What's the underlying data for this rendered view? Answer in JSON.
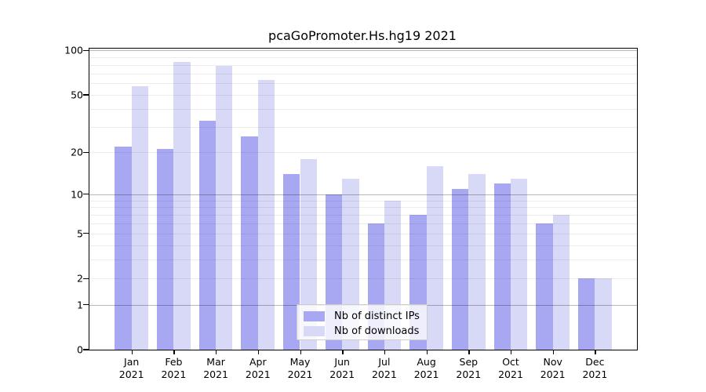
{
  "title": "pcaGoPromoter.Hs.hg19 2021",
  "chart_data": {
    "type": "bar",
    "title": "pcaGoPromoter.Hs.hg19 2021",
    "xlabel": "",
    "ylabel": "",
    "months": [
      "Jan",
      "Feb",
      "Mar",
      "Apr",
      "May",
      "Jun",
      "Jul",
      "Aug",
      "Sep",
      "Oct",
      "Nov",
      "Dec"
    ],
    "year": "2021",
    "categories": [
      "Jan 2021",
      "Feb 2021",
      "Mar 2021",
      "Apr 2021",
      "May 2021",
      "Jun 2021",
      "Jul 2021",
      "Aug 2021",
      "Sep 2021",
      "Oct 2021",
      "Nov 2021",
      "Dec 2021"
    ],
    "series": [
      {
        "name": "Nb of distinct IPs",
        "color": "#a8a8f2",
        "values": [
          22,
          21,
          33,
          26,
          14,
          10,
          6,
          7,
          11,
          12,
          6,
          2
        ]
      },
      {
        "name": "Nb of downloads",
        "color": "#d8d8f7",
        "values": [
          57,
          84,
          79,
          63,
          18,
          13,
          9,
          16,
          14,
          13,
          7,
          2
        ]
      }
    ],
    "yscale": "log10(1+y)",
    "ylim": [
      0,
      100
    ],
    "yticks": [
      0,
      1,
      2,
      5,
      10,
      20,
      50,
      100
    ],
    "grid_major": [
      1,
      10,
      100
    ],
    "grid_minor": [
      2,
      3,
      4,
      5,
      6,
      7,
      8,
      9,
      20,
      30,
      40,
      50,
      60,
      70,
      80,
      90
    ],
    "grid": "on",
    "legend_position": "lower center",
    "colors": {
      "distinct_ips": "#a8a8f2",
      "downloads": "#d8d8f7",
      "grid_major": "#b9b9b9",
      "grid_minor": "#ededed",
      "axis": "#000000"
    }
  },
  "legend": {
    "items": [
      {
        "label": "Nb of distinct IPs"
      },
      {
        "label": "Nb of downloads"
      }
    ]
  }
}
